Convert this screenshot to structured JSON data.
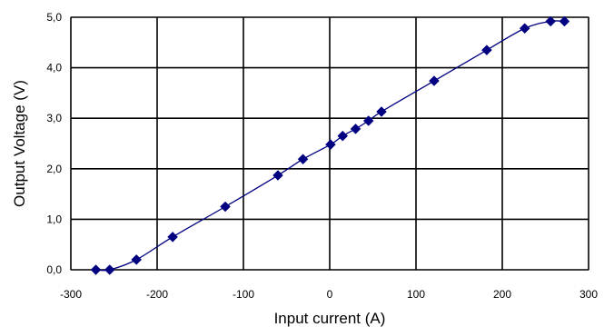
{
  "chart_data": {
    "type": "scatter",
    "xlabel": "Input current (A)",
    "ylabel": "Output Voltage (V)",
    "xlim": [
      -300,
      300
    ],
    "ylim": [
      0,
      5
    ],
    "xticks": [
      "-300",
      "-200",
      "-100",
      "0",
      "100",
      "200",
      "300"
    ],
    "yticks": [
      "0,0",
      "1,0",
      "2,0",
      "3,0",
      "4,0",
      "5,0"
    ],
    "grid": true,
    "legend": "none",
    "series": [
      {
        "marker": "diamond",
        "line": "smooth",
        "color": "#000080",
        "points": [
          {
            "x": -271,
            "y": 0.0
          },
          {
            "x": -255,
            "y": 0.0
          },
          {
            "x": -224,
            "y": 0.2
          },
          {
            "x": -182,
            "y": 0.65
          },
          {
            "x": -121,
            "y": 1.25
          },
          {
            "x": -60,
            "y": 1.87
          },
          {
            "x": -31,
            "y": 2.19
          },
          {
            "x": 1,
            "y": 2.48
          },
          {
            "x": 15,
            "y": 2.65
          },
          {
            "x": 30,
            "y": 2.79
          },
          {
            "x": 45,
            "y": 2.95
          },
          {
            "x": 60,
            "y": 3.13
          },
          {
            "x": 121,
            "y": 3.74
          },
          {
            "x": 182,
            "y": 4.35
          },
          {
            "x": 226,
            "y": 4.78
          },
          {
            "x": 256,
            "y": 4.92
          },
          {
            "x": 272,
            "y": 4.92
          }
        ]
      }
    ]
  }
}
